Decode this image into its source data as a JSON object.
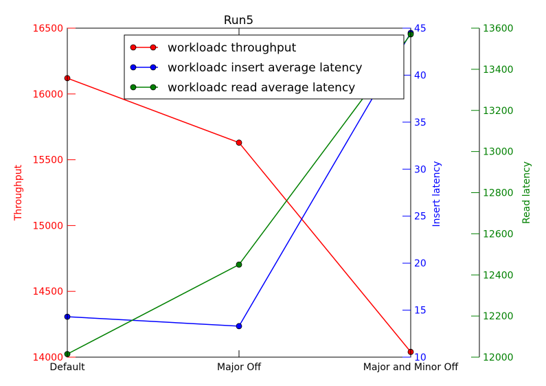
{
  "chart_data": {
    "type": "line",
    "title": "Run5",
    "categories": [
      "Default",
      "Major Off",
      "Major and Minor Off"
    ],
    "axes": {
      "throughput": {
        "label": "Throughput",
        "min": 14000,
        "max": 16500,
        "ticks": [
          14000,
          14500,
          15000,
          15500,
          16000,
          16500
        ],
        "color": "#ff0000"
      },
      "insert": {
        "label": "Insert latency",
        "min": 10,
        "max": 45,
        "ticks": [
          10,
          15,
          20,
          25,
          30,
          35,
          40,
          45
        ],
        "color": "#0000ff"
      },
      "read": {
        "label": "Read latency",
        "min": 12000,
        "max": 13600,
        "ticks": [
          12000,
          12200,
          12400,
          12600,
          12800,
          13000,
          13200,
          13400,
          13600
        ],
        "color": "#008000"
      }
    },
    "series": [
      {
        "name": "workloadc throughput",
        "axis": "throughput",
        "color": "#ff0000",
        "values": [
          16120,
          15630,
          14040
        ]
      },
      {
        "name": "workloadc insert average latency",
        "axis": "insert",
        "color": "#0000ff",
        "values": [
          14.3,
          13.3,
          44.5
        ]
      },
      {
        "name": "workloadc read average latency",
        "axis": "read",
        "color": "#008000",
        "values": [
          12015,
          12450,
          13570
        ]
      }
    ],
    "legend_position": "top-center",
    "grid": false
  }
}
